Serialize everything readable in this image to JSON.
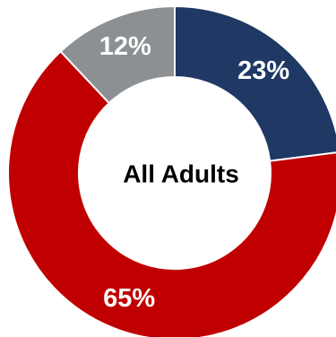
{
  "chart_data": {
    "type": "donut",
    "center_label": "All Adults",
    "slices": [
      {
        "value": 23,
        "label": "23%",
        "color": "#1f3864"
      },
      {
        "value": 65,
        "label": "65%",
        "color": "#c00000"
      },
      {
        "value": 12,
        "label": "12%",
        "color": "#8c9093"
      }
    ],
    "start_angle_deg": 0,
    "direction": "clockwise"
  }
}
